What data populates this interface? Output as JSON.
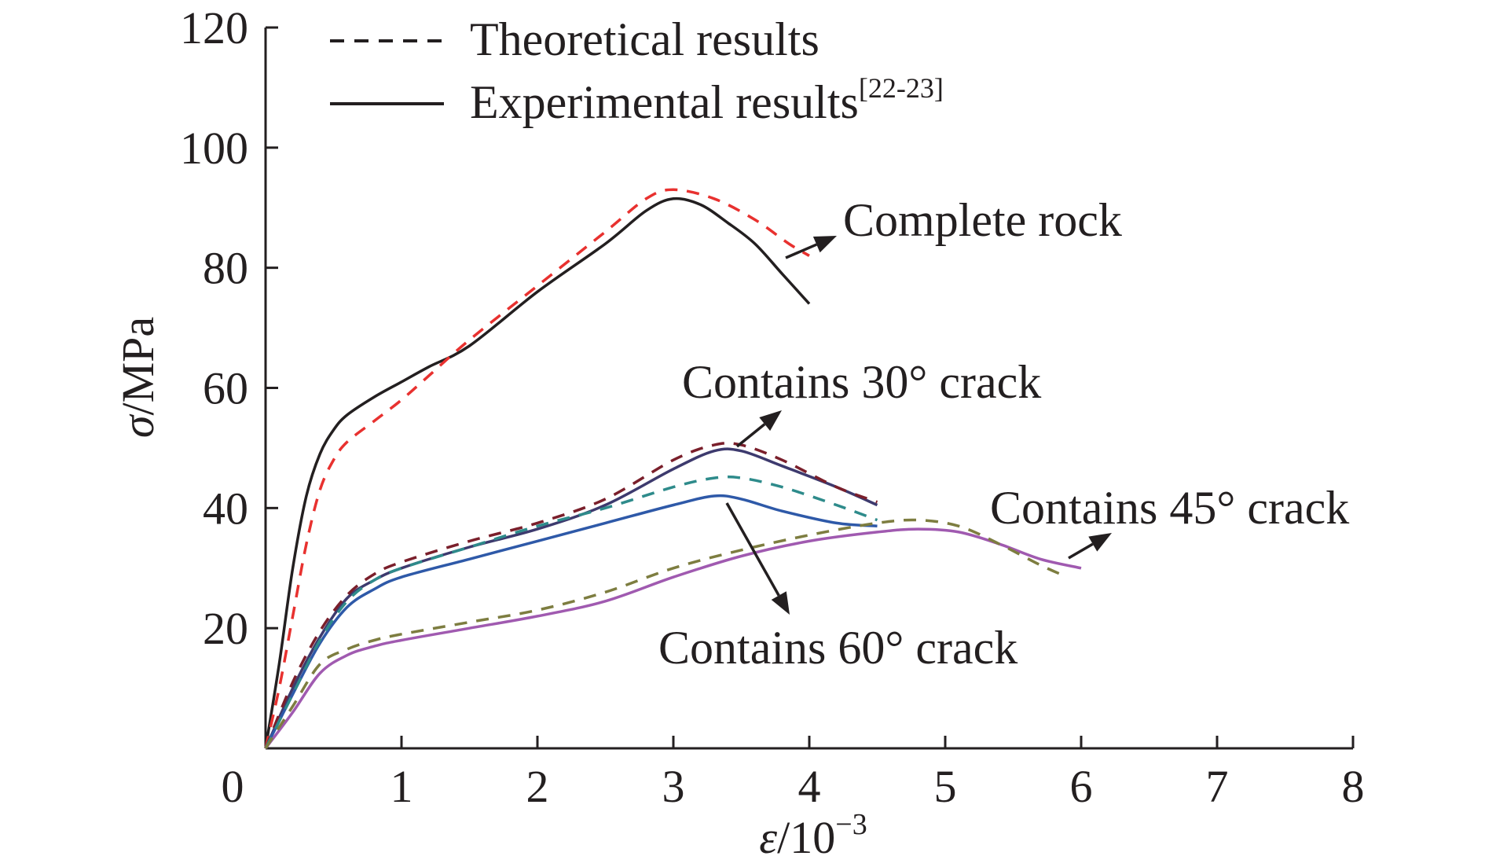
{
  "chart_data": {
    "type": "line",
    "xlabel": {
      "symbol": "ε",
      "text": "/10",
      "sup": "−3"
    },
    "ylabel": {
      "symbol": "σ",
      "text": "/MPa"
    },
    "xlim": [
      0,
      8
    ],
    "ylim": [
      0,
      120
    ],
    "xticks": [
      0,
      1,
      2,
      3,
      4,
      5,
      6,
      7,
      8
    ],
    "yticks": [
      20,
      40,
      60,
      80,
      100,
      120
    ],
    "x_tick_labels": [
      "0",
      "1",
      "2",
      "3",
      "4",
      "5",
      "6",
      "7",
      "8"
    ],
    "y_tick_labels": [
      "20",
      "40",
      "60",
      "80",
      "100",
      "120"
    ],
    "grid": false,
    "legend": {
      "placement": "top-left",
      "entries": [
        {
          "style": "dashed",
          "label": "Theoretical results",
          "sup": ""
        },
        {
          "style": "solid",
          "label": "Experimental results",
          "sup": "[22-23]"
        }
      ]
    },
    "annotations": [
      {
        "text": "Complete rock",
        "target": "complete-rock"
      },
      {
        "text": "Contains 30° crack",
        "target": "crack-30"
      },
      {
        "text": "Contains 45° crack",
        "target": "crack-45"
      },
      {
        "text": "Contains 60° crack",
        "target": "crack-60"
      }
    ],
    "series": [
      {
        "id": "complete-exp",
        "group": "complete-rock",
        "style": "solid",
        "color": "#231f20",
        "points": [
          [
            0,
            0
          ],
          [
            0.1,
            14
          ],
          [
            0.2,
            30
          ],
          [
            0.3,
            42
          ],
          [
            0.4,
            49
          ],
          [
            0.5,
            53
          ],
          [
            0.6,
            55.5
          ],
          [
            0.8,
            58.5
          ],
          [
            1.0,
            61
          ],
          [
            1.2,
            63.5
          ],
          [
            1.5,
            67
          ],
          [
            2.0,
            76
          ],
          [
            2.5,
            84
          ],
          [
            2.8,
            89.5
          ],
          [
            3.0,
            91.5
          ],
          [
            3.2,
            90.5
          ],
          [
            3.4,
            87.5
          ],
          [
            3.6,
            84
          ],
          [
            3.8,
            79
          ],
          [
            4.0,
            74
          ]
        ]
      },
      {
        "id": "complete-theo",
        "group": "complete-rock",
        "style": "dashed",
        "color": "#e8312f",
        "points": [
          [
            0,
            0
          ],
          [
            0.1,
            10
          ],
          [
            0.2,
            22
          ],
          [
            0.3,
            34
          ],
          [
            0.4,
            43
          ],
          [
            0.5,
            48
          ],
          [
            0.6,
            51
          ],
          [
            0.8,
            54.5
          ],
          [
            1.0,
            58
          ],
          [
            1.2,
            62
          ],
          [
            1.5,
            68
          ],
          [
            2.0,
            77
          ],
          [
            2.5,
            86
          ],
          [
            2.8,
            91.5
          ],
          [
            3.0,
            93
          ],
          [
            3.3,
            91.5
          ],
          [
            3.6,
            88
          ],
          [
            3.85,
            84
          ],
          [
            4.0,
            82
          ]
        ]
      },
      {
        "id": "crack30-exp",
        "group": "crack-30",
        "style": "solid",
        "color": "#3d3a6e",
        "points": [
          [
            0,
            0
          ],
          [
            0.2,
            10
          ],
          [
            0.4,
            18.5
          ],
          [
            0.6,
            25
          ],
          [
            0.8,
            28
          ],
          [
            1.0,
            30
          ],
          [
            1.5,
            33.5
          ],
          [
            2.0,
            36.5
          ],
          [
            2.5,
            40.5
          ],
          [
            3.0,
            46.5
          ],
          [
            3.3,
            49.5
          ],
          [
            3.5,
            49.5
          ],
          [
            3.8,
            47
          ],
          [
            4.2,
            43.5
          ],
          [
            4.5,
            40.5
          ]
        ]
      },
      {
        "id": "crack30-theo",
        "group": "crack-30",
        "style": "dashed",
        "color": "#7a1f2b",
        "points": [
          [
            0,
            0
          ],
          [
            0.2,
            11
          ],
          [
            0.4,
            19.5
          ],
          [
            0.6,
            25.5
          ],
          [
            0.8,
            29
          ],
          [
            1.0,
            31
          ],
          [
            1.5,
            34.5
          ],
          [
            2.0,
            37.5
          ],
          [
            2.5,
            41.5
          ],
          [
            3.0,
            48
          ],
          [
            3.3,
            50.5
          ],
          [
            3.5,
            50.5
          ],
          [
            3.8,
            48
          ],
          [
            4.2,
            43.5
          ],
          [
            4.5,
            41
          ]
        ]
      },
      {
        "id": "crack60-exp",
        "group": "crack-60",
        "style": "solid",
        "color": "#2e59a8",
        "points": [
          [
            0,
            0
          ],
          [
            0.2,
            9
          ],
          [
            0.4,
            17.5
          ],
          [
            0.6,
            23.5
          ],
          [
            0.8,
            26.5
          ],
          [
            1.0,
            28.5
          ],
          [
            1.5,
            31.5
          ],
          [
            2.0,
            34.5
          ],
          [
            2.5,
            37.5
          ],
          [
            3.0,
            40.5
          ],
          [
            3.3,
            42
          ],
          [
            3.5,
            41.5
          ],
          [
            3.8,
            39.5
          ],
          [
            4.2,
            37.5
          ],
          [
            4.5,
            37
          ]
        ]
      },
      {
        "id": "crack60-theo",
        "group": "crack-60",
        "style": "dashed",
        "color": "#2e8b8b",
        "points": [
          [
            0,
            0
          ],
          [
            0.2,
            9
          ],
          [
            0.4,
            18
          ],
          [
            0.6,
            24.5
          ],
          [
            0.8,
            28
          ],
          [
            1.0,
            30
          ],
          [
            1.5,
            33.5
          ],
          [
            2.0,
            37
          ],
          [
            2.5,
            40
          ],
          [
            3.0,
            43.5
          ],
          [
            3.3,
            45
          ],
          [
            3.5,
            45
          ],
          [
            3.8,
            43.5
          ],
          [
            4.2,
            40.5
          ],
          [
            4.5,
            38
          ]
        ]
      },
      {
        "id": "crack45-exp",
        "group": "crack-45",
        "style": "solid",
        "color": "#a05ab0",
        "points": [
          [
            0,
            0
          ],
          [
            0.2,
            6
          ],
          [
            0.4,
            12.5
          ],
          [
            0.6,
            15.5
          ],
          [
            0.8,
            17
          ],
          [
            1.0,
            18
          ],
          [
            1.5,
            20
          ],
          [
            2.0,
            22
          ],
          [
            2.5,
            24.5
          ],
          [
            3.0,
            28.5
          ],
          [
            3.5,
            32
          ],
          [
            4.0,
            34.5
          ],
          [
            4.5,
            36
          ],
          [
            4.8,
            36.5
          ],
          [
            5.1,
            36
          ],
          [
            5.4,
            34
          ],
          [
            5.7,
            31.5
          ],
          [
            6.0,
            30
          ]
        ]
      },
      {
        "id": "crack45-theo",
        "group": "crack-45",
        "style": "dashed",
        "color": "#7d7d40",
        "points": [
          [
            0,
            0
          ],
          [
            0.2,
            7
          ],
          [
            0.4,
            14
          ],
          [
            0.6,
            16.5
          ],
          [
            0.8,
            18
          ],
          [
            1.0,
            19
          ],
          [
            1.5,
            21
          ],
          [
            2.0,
            23
          ],
          [
            2.5,
            26
          ],
          [
            3.0,
            30
          ],
          [
            3.5,
            33
          ],
          [
            4.0,
            35.5
          ],
          [
            4.5,
            37.5
          ],
          [
            4.8,
            38
          ],
          [
            5.1,
            37
          ],
          [
            5.4,
            34
          ],
          [
            5.7,
            30.5
          ],
          [
            5.9,
            28.5
          ]
        ]
      }
    ]
  }
}
